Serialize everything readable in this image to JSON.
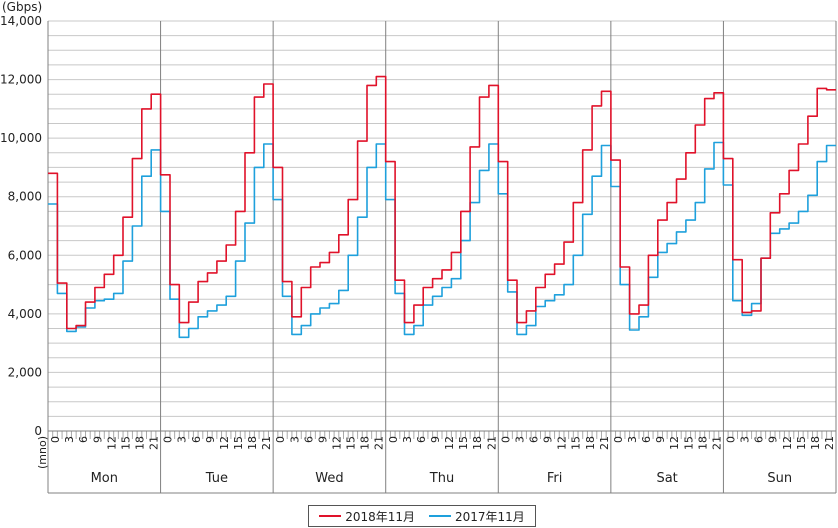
{
  "chart_data": {
    "type": "line",
    "unit_label": "(Gbps)",
    "ylim": [
      0,
      14000
    ],
    "y_ticks": [
      "0",
      "2,000",
      "4,000",
      "6,000",
      "8,000",
      "10,000",
      "12,000",
      "14,000"
    ],
    "y_tick_values": [
      0,
      2000,
      4000,
      6000,
      8000,
      10000,
      12000,
      14000
    ],
    "grid": true,
    "hour_ticks": [
      "0",
      "3",
      "6",
      "9",
      "12",
      "15",
      "18",
      "21"
    ],
    "x_first_label": "(mno)",
    "days": [
      "Mon",
      "Tue",
      "Wed",
      "Thu",
      "Fri",
      "Sat",
      "Sun"
    ],
    "legend_position": "bottom",
    "colors": {
      "2018": "#e0122a",
      "2017": "#1ea0dc",
      "grid": "#c8c8c8",
      "axis": "#808080"
    },
    "series": [
      {
        "name": "2018年11月",
        "color": "#e0122a",
        "values": [
          8800,
          5050,
          3500,
          3600,
          4400,
          4900,
          5350,
          6000,
          7300,
          9300,
          11000,
          11500,
          8750,
          5000,
          3700,
          4400,
          5100,
          5400,
          5800,
          6350,
          7500,
          9500,
          11400,
          11850,
          9000,
          5100,
          3900,
          4900,
          5600,
          5750,
          6100,
          6700,
          7900,
          9900,
          11800,
          12100,
          9200,
          5150,
          3700,
          4300,
          4900,
          5200,
          5500,
          6100,
          7500,
          9700,
          11400,
          11800,
          9200,
          5150,
          3700,
          4100,
          4900,
          5350,
          5700,
          6450,
          7800,
          9600,
          11100,
          11600,
          9250,
          5600,
          4000,
          4300,
          6000,
          7200,
          7800,
          8600,
          9500,
          10450,
          11350,
          11550,
          9300,
          5850,
          4050,
          4100,
          5900,
          7450,
          8100,
          8900,
          9800,
          10750,
          11700,
          11650
        ]
      },
      {
        "name": "2017年11月",
        "color": "#1ea0dc",
        "values": [
          7750,
          4700,
          3400,
          3550,
          4200,
          4450,
          4500,
          4700,
          5800,
          7000,
          8700,
          9600,
          7500,
          4500,
          3200,
          3500,
          3900,
          4100,
          4300,
          4600,
          5800,
          7100,
          9000,
          9800,
          7900,
          4600,
          3300,
          3600,
          4000,
          4200,
          4350,
          4800,
          6000,
          7300,
          9000,
          9800,
          7900,
          4700,
          3300,
          3600,
          4300,
          4600,
          4900,
          5200,
          6500,
          7800,
          8900,
          9800,
          8100,
          4750,
          3300,
          3600,
          4250,
          4450,
          4650,
          5000,
          6000,
          7400,
          8700,
          9750,
          8350,
          5000,
          3450,
          3900,
          5250,
          6100,
          6400,
          6800,
          7200,
          7800,
          8950,
          9850,
          8400,
          4450,
          3950,
          4350,
          5900,
          6750,
          6900,
          7100,
          7500,
          8050,
          9200,
          9750
        ]
      }
    ]
  },
  "legend": [
    {
      "label": "2018年11月",
      "color": "#e0122a"
    },
    {
      "label": "2017年11月",
      "color": "#1ea0dc"
    }
  ]
}
